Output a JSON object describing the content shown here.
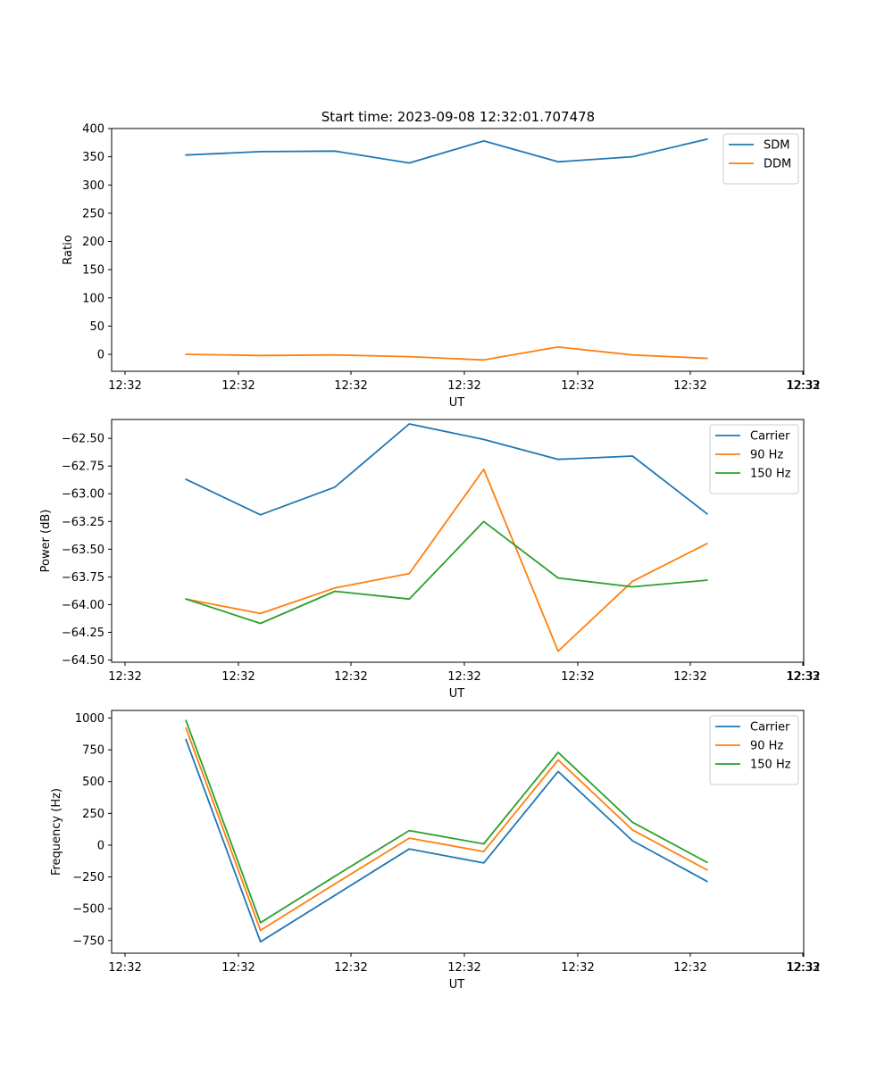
{
  "figure": {
    "colors": {
      "c0": "#1f77b4",
      "c1": "#ff7f0e",
      "c2": "#2ca02c"
    }
  },
  "chart_data": [
    {
      "type": "line",
      "title": "Start time: 2023-09-08 12:32:01.707478",
      "xlabel": "UT",
      "ylabel": "Ratio",
      "xticks": [
        "12:32",
        "12:32",
        "12:32",
        "12:32",
        "12:32",
        "12:32",
        "12:32"
      ],
      "xlim": [
        0,
        9.3
      ],
      "ylim": [
        -30,
        400
      ],
      "yticks": [
        0,
        50,
        100,
        150,
        200,
        250,
        300,
        350,
        400
      ],
      "ytick_labels": [
        "0",
        "50",
        "100",
        "150",
        "200",
        "250",
        "300",
        "350",
        "400"
      ],
      "x": [
        1,
        2,
        3,
        4,
        5,
        6,
        7,
        8
      ],
      "series": [
        {
          "name": "SDM",
          "color": "#1f77b4",
          "values": [
            353,
            359,
            360,
            339,
            378,
            341,
            350,
            381
          ]
        },
        {
          "name": "DDM",
          "color": "#ff7f0e",
          "values": [
            0,
            -2,
            -1,
            -4,
            -10,
            13,
            -1,
            -7
          ]
        }
      ],
      "legend": "upper right",
      "final_tick": "12:33"
    },
    {
      "type": "line",
      "title": "",
      "xlabel": "UT",
      "ylabel": "Power (dB)",
      "xticks": [
        "12:32",
        "12:32",
        "12:32",
        "12:32",
        "12:32",
        "12:32",
        "12:32"
      ],
      "xlim": [
        0,
        9.3
      ],
      "ylim": [
        -64.52,
        -62.33
      ],
      "yticks": [
        -64.5,
        -64.25,
        -64.0,
        -63.75,
        -63.5,
        -63.25,
        -63.0,
        -62.75,
        -62.5
      ],
      "ytick_labels": [
        "−64.50",
        "−64.25",
        "−64.00",
        "−63.75",
        "−63.50",
        "−63.25",
        "−63.00",
        "−62.75",
        "−62.50"
      ],
      "x": [
        1,
        2,
        3,
        4,
        5,
        6,
        7,
        8
      ],
      "series": [
        {
          "name": "Carrier",
          "color": "#1f77b4",
          "values": [
            -62.87,
            -63.19,
            -62.94,
            -62.37,
            -62.51,
            -62.69,
            -62.66,
            -63.18
          ]
        },
        {
          "name": "90 Hz",
          "color": "#ff7f0e",
          "values": [
            -63.95,
            -64.08,
            -63.85,
            -63.72,
            -62.78,
            -64.42,
            -63.79,
            -63.45
          ]
        },
        {
          "name": "150 Hz",
          "color": "#2ca02c",
          "values": [
            -63.95,
            -64.17,
            -63.88,
            -63.95,
            -63.25,
            -63.76,
            -63.84,
            -63.78
          ]
        }
      ],
      "legend": "upper right",
      "final_tick": "12:33"
    },
    {
      "type": "line",
      "title": "",
      "xlabel": "UT",
      "ylabel": "Frequency (Hz)",
      "xticks": [
        "12:32",
        "12:32",
        "12:32",
        "12:32",
        "12:32",
        "12:32",
        "12:32"
      ],
      "xlim": [
        0,
        9.3
      ],
      "ylim": [
        -850,
        1060
      ],
      "yticks": [
        -750,
        -500,
        -250,
        0,
        250,
        500,
        750,
        1000
      ],
      "ytick_labels": [
        "−750",
        "−500",
        "−250",
        "0",
        "250",
        "500",
        "750",
        "1000"
      ],
      "x": [
        1,
        2,
        3,
        4,
        5,
        6,
        7,
        8
      ],
      "series": [
        {
          "name": "Carrier",
          "color": "#1f77b4",
          "values": [
            830,
            -760,
            -395,
            -30,
            -140,
            580,
            35,
            -285
          ]
        },
        {
          "name": "90 Hz",
          "color": "#ff7f0e",
          "values": [
            920,
            -670,
            -305,
            55,
            -50,
            670,
            120,
            -195
          ]
        },
        {
          "name": "150 Hz",
          "color": "#2ca02c",
          "values": [
            980,
            -610,
            -245,
            115,
            10,
            730,
            180,
            -135
          ]
        }
      ],
      "legend": "upper right",
      "final_tick": "12:33"
    }
  ]
}
